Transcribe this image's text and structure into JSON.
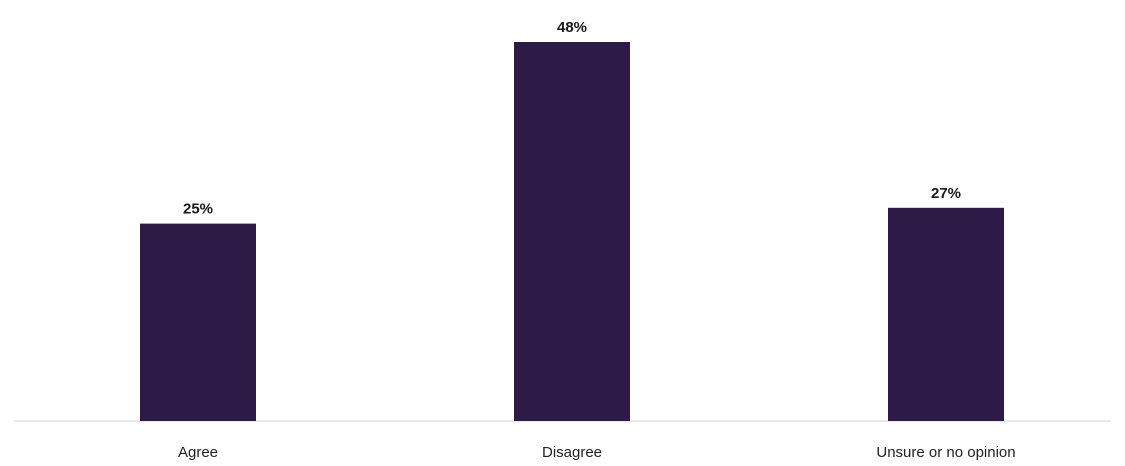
{
  "chart_data": {
    "type": "bar",
    "categories": [
      "Agree",
      "Disagree",
      "Unsure or no opinion"
    ],
    "values": [
      25,
      48,
      27
    ],
    "data_labels": [
      "25%",
      "48%",
      "27%"
    ],
    "title": "",
    "xlabel": "",
    "ylabel": "",
    "ylim": [
      0,
      48
    ],
    "grid": false,
    "legend": "none",
    "bar_color": "#2e1a47",
    "axis_color": "#d0d0d0"
  }
}
